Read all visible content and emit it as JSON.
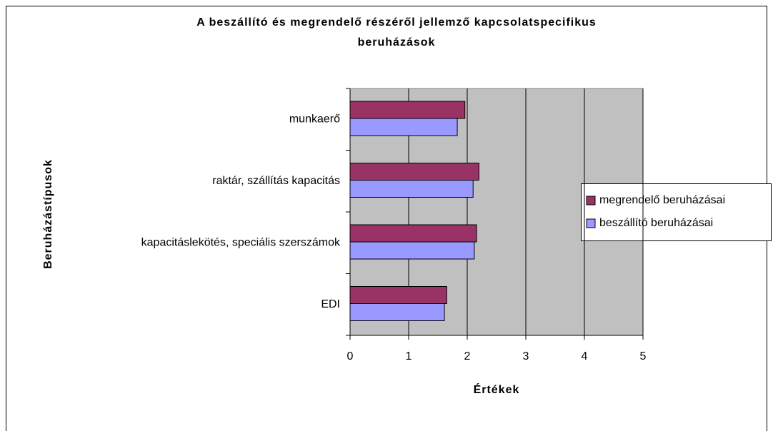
{
  "chart_data": {
    "type": "hbar",
    "title": [
      "A beszállító és megrendelő részéről jellemző kapcsolatspecifikus",
      "beruházások"
    ],
    "xlabel": "Értékek",
    "ylabel": "Beruházástípusok",
    "categories": [
      "munkaerő",
      "raktár, szállítás kapacitás",
      "kapacitáslekötés, speciális szerszámok",
      "EDI"
    ],
    "series": [
      {
        "name": "megrendelő beruházásai",
        "color": "#993366",
        "values": [
          1.96,
          2.2,
          2.16,
          1.65
        ]
      },
      {
        "name": "beszállító beruházásai",
        "color": "#9999ff",
        "values": [
          1.83,
          2.1,
          2.12,
          1.61
        ]
      }
    ],
    "xlim": [
      0,
      5
    ],
    "xticks": [
      0,
      1,
      2,
      3,
      4,
      5
    ],
    "grid": true,
    "legend": "right"
  }
}
